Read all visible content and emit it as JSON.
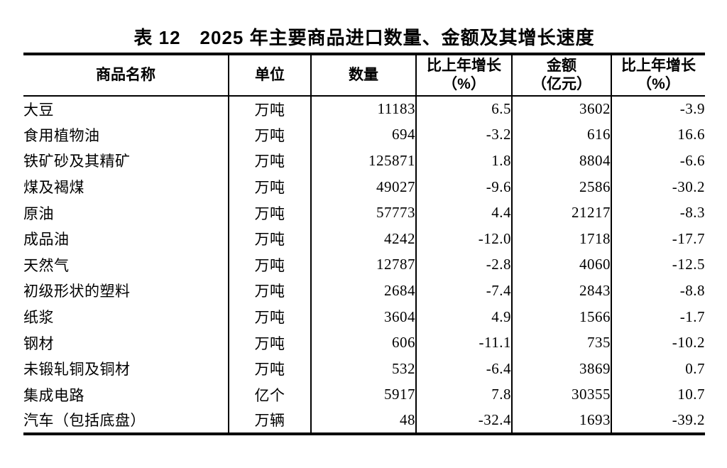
{
  "title": "表 12　2025 年主要商品进口数量、金额及其增长速度",
  "table": {
    "headers": [
      {
        "line1": "商品名称"
      },
      {
        "line1": "单位"
      },
      {
        "line1": "数量"
      },
      {
        "line1": "比上年增长",
        "line2": "（%）"
      },
      {
        "line1": "金额",
        "line2": "（亿元）"
      },
      {
        "line1": "比上年增长",
        "line2": "（%）"
      }
    ],
    "rows": [
      {
        "name": "大豆",
        "unit": "万吨",
        "qty": "11183",
        "qty_growth": "6.5",
        "amount": "3602",
        "amount_growth": "-3.9"
      },
      {
        "name": "食用植物油",
        "unit": "万吨",
        "qty": "694",
        "qty_growth": "-3.2",
        "amount": "616",
        "amount_growth": "16.6"
      },
      {
        "name": "铁矿砂及其精矿",
        "unit": "万吨",
        "qty": "125871",
        "qty_growth": "1.8",
        "amount": "8804",
        "amount_growth": "-6.6"
      },
      {
        "name": "煤及褐煤",
        "unit": "万吨",
        "qty": "49027",
        "qty_growth": "-9.6",
        "amount": "2586",
        "amount_growth": "-30.2"
      },
      {
        "name": "原油",
        "unit": "万吨",
        "qty": "57773",
        "qty_growth": "4.4",
        "amount": "21217",
        "amount_growth": "-8.3"
      },
      {
        "name": "成品油",
        "unit": "万吨",
        "qty": "4242",
        "qty_growth": "-12.0",
        "amount": "1718",
        "amount_growth": "-17.7"
      },
      {
        "name": "天然气",
        "unit": "万吨",
        "qty": "12787",
        "qty_growth": "-2.8",
        "amount": "4060",
        "amount_growth": "-12.5"
      },
      {
        "name": "初级形状的塑料",
        "unit": "万吨",
        "qty": "2684",
        "qty_growth": "-7.4",
        "amount": "2843",
        "amount_growth": "-8.8"
      },
      {
        "name": "纸浆",
        "unit": "万吨",
        "qty": "3604",
        "qty_growth": "4.9",
        "amount": "1566",
        "amount_growth": "-1.7"
      },
      {
        "name": "钢材",
        "unit": "万吨",
        "qty": "606",
        "qty_growth": "-11.1",
        "amount": "735",
        "amount_growth": "-10.2"
      },
      {
        "name": "未锻轧铜及铜材",
        "unit": "万吨",
        "qty": "532",
        "qty_growth": "-6.4",
        "amount": "3869",
        "amount_growth": "0.7"
      },
      {
        "name": "集成电路",
        "unit": "亿个",
        "qty": "5917",
        "qty_growth": "7.8",
        "amount": "30355",
        "amount_growth": "10.7"
      },
      {
        "name": "汽车（包括底盘）",
        "unit": "万辆",
        "qty": "48",
        "qty_growth": "-32.4",
        "amount": "1693",
        "amount_growth": "-39.2"
      }
    ]
  },
  "colors": {
    "text": "#000000",
    "rule": "#000000",
    "background": "#ffffff"
  }
}
